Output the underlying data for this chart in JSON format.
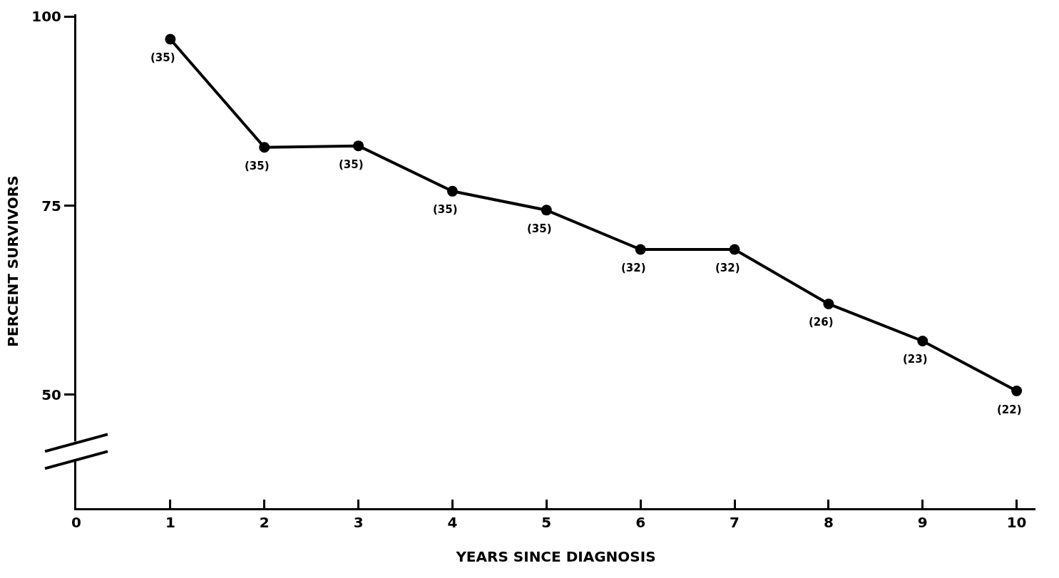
{
  "chart_data": {
    "type": "line",
    "xlabel": "YEARS SINCE DIAGNOSIS",
    "ylabel": "PERCENT SURVIVORS",
    "x": [
      1,
      2,
      3,
      4,
      5,
      6,
      7,
      8,
      9,
      10
    ],
    "values": [
      97.0,
      82.7,
      82.9,
      76.9,
      74.4,
      69.2,
      69.2,
      62.0,
      57.1,
      50.5
    ],
    "color": "#000000",
    "marker": "circle",
    "line_style": "solid",
    "xlim": [
      0,
      10.2
    ],
    "xticks": [
      0,
      1,
      2,
      3,
      4,
      5,
      6,
      7,
      8,
      9,
      10
    ],
    "ylim": [
      35,
      100.3
    ],
    "yticks": [
      50,
      75,
      100
    ],
    "annotations": [
      {
        "text": "(35)",
        "x": 1,
        "y": 97.0
      },
      {
        "text": "(35)",
        "x": 2,
        "y": 82.7
      },
      {
        "text": "(35)",
        "x": 3,
        "y": 82.9
      },
      {
        "text": "(35)",
        "x": 4,
        "y": 76.9
      },
      {
        "text": "(35)",
        "x": 5,
        "y": 74.4
      },
      {
        "text": "(32)",
        "x": 6,
        "y": 69.2
      },
      {
        "text": "(32)",
        "x": 7,
        "y": 69.2
      },
      {
        "text": "(26)",
        "x": 8,
        "y": 62.0
      },
      {
        "text": "(23)",
        "x": 9,
        "y": 57.1
      },
      {
        "text": "(22)",
        "x": 10,
        "y": 50.5
      }
    ]
  }
}
